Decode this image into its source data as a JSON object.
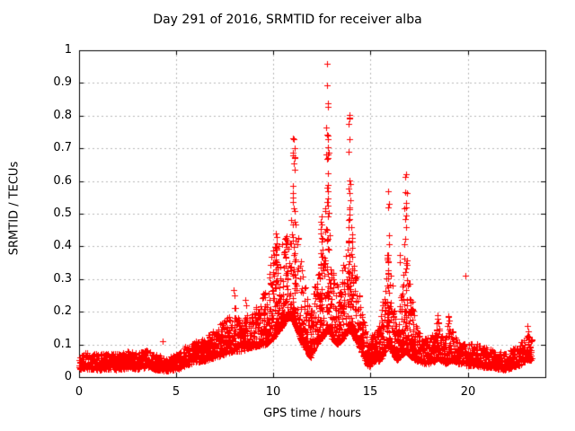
{
  "chart_data": {
    "type": "scatter",
    "title": "Day 291 of 2016, SRMTID for receiver alba",
    "xlabel": "GPS time / hours",
    "ylabel": "SRMTID / TECUs",
    "xlim": [
      0,
      24
    ],
    "ylim": [
      0,
      1
    ],
    "xticks": {
      "values": [
        0,
        5,
        10,
        15,
        20
      ],
      "labels": [
        "0",
        "5",
        "10",
        "15",
        "20"
      ]
    },
    "yticks": {
      "values": [
        0,
        0.1,
        0.2,
        0.3,
        0.4,
        0.5,
        0.6,
        0.7,
        0.8,
        0.9,
        1
      ],
      "labels": [
        "0",
        "0.1",
        "0.2",
        "0.3",
        "0.4",
        "0.5",
        "0.6",
        "0.7",
        "0.8",
        "0.9",
        "1"
      ]
    },
    "grid": {
      "show": true,
      "color": "#b9b9b9",
      "dash": [
        2,
        3
      ]
    },
    "background": "#ffffff",
    "border_color": "#000000",
    "marker": "plus",
    "marker_color": "#ff0000",
    "marker_size_px": 7,
    "legend": null,
    "seed": 291,
    "samples_per_hour": 120,
    "x_start": 0,
    "x_end": 23.3,
    "envelope": [
      [
        0.0,
        0.025,
        0.07
      ],
      [
        0.5,
        0.025,
        0.075
      ],
      [
        1.0,
        0.022,
        0.07
      ],
      [
        1.5,
        0.025,
        0.075
      ],
      [
        2.0,
        0.022,
        0.072
      ],
      [
        2.5,
        0.028,
        0.08
      ],
      [
        3.0,
        0.025,
        0.075
      ],
      [
        3.5,
        0.03,
        0.085
      ],
      [
        4.0,
        0.022,
        0.07
      ],
      [
        4.5,
        0.018,
        0.06
      ],
      [
        5.0,
        0.022,
        0.07
      ],
      [
        5.5,
        0.035,
        0.095
      ],
      [
        6.0,
        0.045,
        0.11
      ],
      [
        6.5,
        0.05,
        0.12
      ],
      [
        7.0,
        0.06,
        0.15
      ],
      [
        7.5,
        0.07,
        0.18
      ],
      [
        8.0,
        0.08,
        0.2
      ],
      [
        8.4,
        0.08,
        0.17
      ],
      [
        8.8,
        0.09,
        0.2
      ],
      [
        9.2,
        0.095,
        0.22
      ],
      [
        9.6,
        0.1,
        0.28
      ],
      [
        10.0,
        0.12,
        0.4
      ],
      [
        10.4,
        0.15,
        0.4
      ],
      [
        10.7,
        0.18,
        0.45
      ],
      [
        11.0,
        0.18,
        0.58
      ],
      [
        11.2,
        0.15,
        0.48
      ],
      [
        11.5,
        0.1,
        0.32
      ],
      [
        11.9,
        0.06,
        0.2
      ],
      [
        12.2,
        0.1,
        0.32
      ],
      [
        12.5,
        0.12,
        0.42
      ],
      [
        12.8,
        0.15,
        0.6
      ],
      [
        13.0,
        0.12,
        0.4
      ],
      [
        13.3,
        0.1,
        0.28
      ],
      [
        13.6,
        0.12,
        0.35
      ],
      [
        13.9,
        0.15,
        0.55
      ],
      [
        14.2,
        0.12,
        0.35
      ],
      [
        14.5,
        0.08,
        0.22
      ],
      [
        14.9,
        0.03,
        0.1
      ],
      [
        15.2,
        0.05,
        0.15
      ],
      [
        15.5,
        0.05,
        0.16
      ],
      [
        15.9,
        0.1,
        0.4
      ],
      [
        16.1,
        0.08,
        0.3
      ],
      [
        16.35,
        0.05,
        0.15
      ],
      [
        16.8,
        0.08,
        0.42
      ],
      [
        17.1,
        0.06,
        0.25
      ],
      [
        17.4,
        0.05,
        0.15
      ],
      [
        17.8,
        0.04,
        0.12
      ],
      [
        18.2,
        0.045,
        0.13
      ],
      [
        18.5,
        0.055,
        0.16
      ],
      [
        18.8,
        0.04,
        0.12
      ],
      [
        19.2,
        0.05,
        0.15
      ],
      [
        19.6,
        0.04,
        0.12
      ],
      [
        20.0,
        0.035,
        0.11
      ],
      [
        20.4,
        0.035,
        0.105
      ],
      [
        20.8,
        0.03,
        0.095
      ],
      [
        21.2,
        0.03,
        0.09
      ],
      [
        21.6,
        0.025,
        0.08
      ],
      [
        22.0,
        0.02,
        0.075
      ],
      [
        22.4,
        0.03,
        0.09
      ],
      [
        22.8,
        0.04,
        0.11
      ],
      [
        23.1,
        0.05,
        0.13
      ],
      [
        23.3,
        0.05,
        0.12
      ]
    ],
    "columns": [
      [
        6.35,
        0.05,
        0.15,
        8
      ],
      [
        8.0,
        0.1,
        0.27,
        10
      ],
      [
        8.6,
        0.1,
        0.25,
        8
      ],
      [
        10.15,
        0.15,
        0.44,
        18
      ],
      [
        10.7,
        0.2,
        0.43,
        12
      ],
      [
        11.05,
        0.18,
        0.73,
        30
      ],
      [
        12.45,
        0.15,
        0.5,
        16
      ],
      [
        12.78,
        0.18,
        0.84,
        30
      ],
      [
        13.9,
        0.18,
        0.8,
        26
      ],
      [
        14.05,
        0.15,
        0.5,
        14
      ],
      [
        15.9,
        0.1,
        0.57,
        16
      ],
      [
        16.55,
        0.08,
        0.4,
        10
      ],
      [
        16.8,
        0.1,
        0.62,
        16
      ],
      [
        18.45,
        0.06,
        0.21,
        10
      ],
      [
        19.0,
        0.06,
        0.2,
        10
      ],
      [
        23.15,
        0.05,
        0.16,
        10
      ]
    ],
    "outliers": [
      [
        4.3,
        0.11
      ],
      [
        12.78,
        0.96
      ],
      [
        12.78,
        0.893
      ],
      [
        12.8,
        0.838
      ],
      [
        12.76,
        0.742
      ],
      [
        12.79,
        0.703
      ],
      [
        13.9,
        0.802
      ],
      [
        13.92,
        0.79
      ],
      [
        13.88,
        0.775
      ],
      [
        13.91,
        0.728
      ],
      [
        13.89,
        0.69
      ],
      [
        11.05,
        0.728
      ],
      [
        11.08,
        0.67
      ],
      [
        11.03,
        0.655
      ],
      [
        16.82,
        0.62
      ],
      [
        16.8,
        0.565
      ],
      [
        15.92,
        0.57
      ],
      [
        15.9,
        0.52
      ],
      [
        19.9,
        0.31
      ],
      [
        10.15,
        0.44
      ],
      [
        10.7,
        0.43
      ]
    ]
  }
}
